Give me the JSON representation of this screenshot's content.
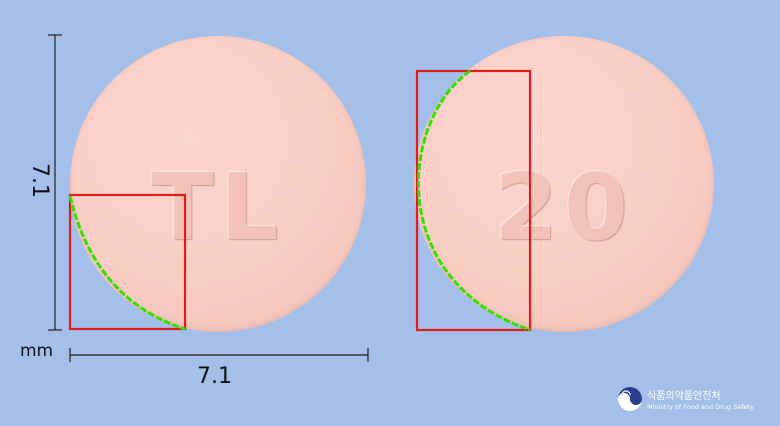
{
  "front": {
    "imprint": "TL"
  },
  "back": {
    "imprint": "20"
  },
  "dimensions": {
    "width": "7.1",
    "height": "7.1",
    "unit": "mm"
  },
  "colors": {
    "background": "#a4bfe9",
    "pill": "#f8cdc4",
    "guide_box": "#e21b1b",
    "edge_trace": "#35e000"
  },
  "logo": {
    "korean": "식품의약품안전처",
    "english": "Ministry of Food and Drug Safety",
    "icon": "mfds-emblem-icon"
  }
}
